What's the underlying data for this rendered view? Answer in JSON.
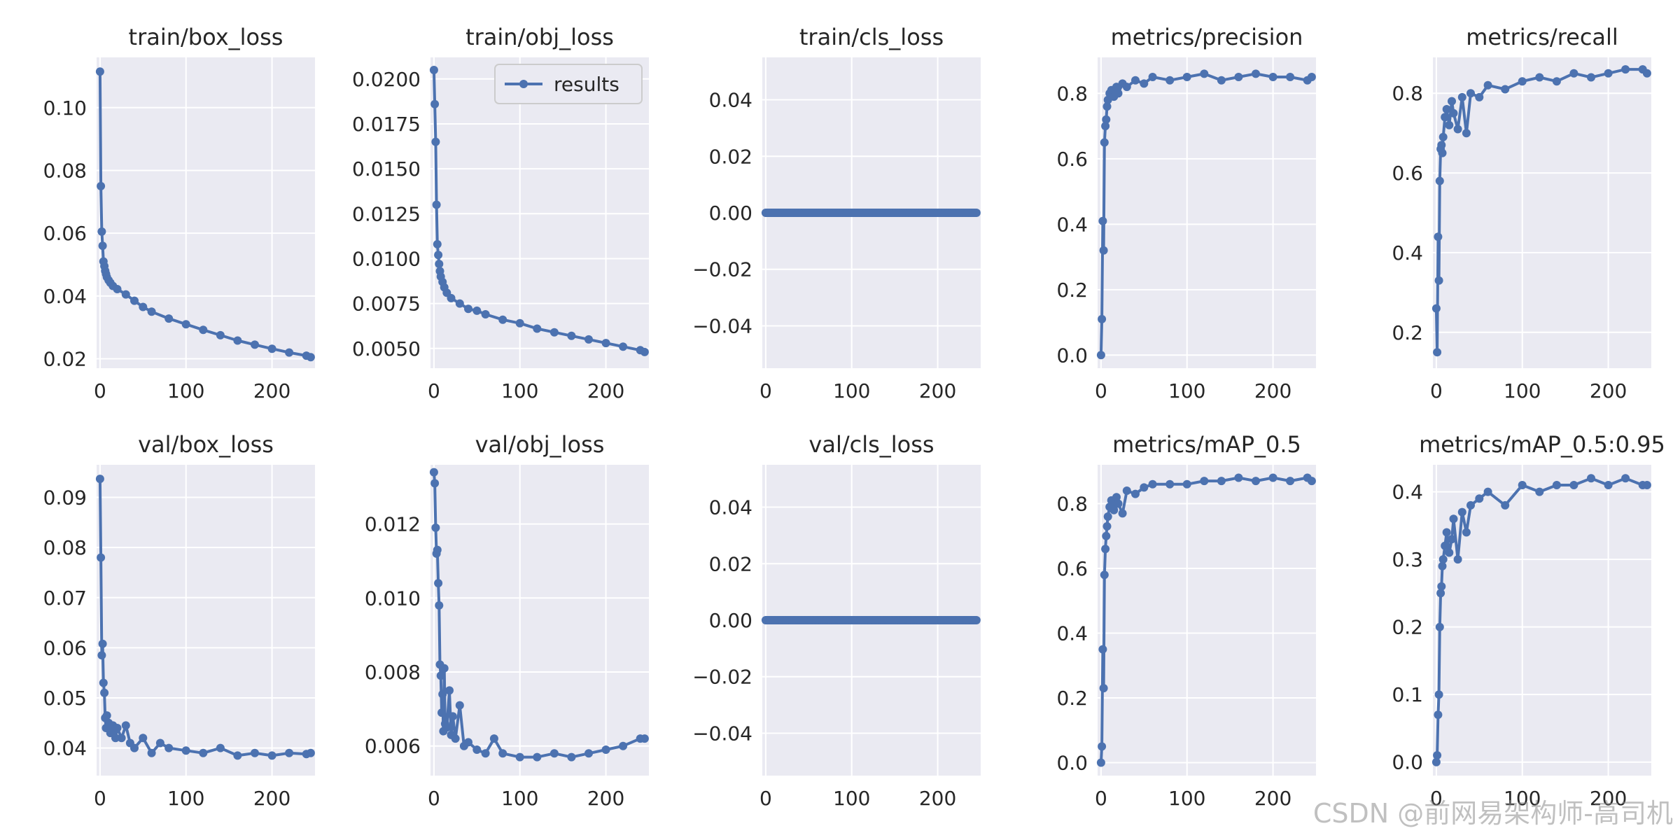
{
  "figure": {
    "series_color": "#4C72B0",
    "panel_bg": "#EAEAF2",
    "grid_color": "#FFFFFF",
    "tick_color": "#262626"
  },
  "watermark": "CSDN @前网易架构师-高司机",
  "chart_data": [
    {
      "type": "line",
      "title": "train/box_loss",
      "legend": [],
      "xlim": [
        -4,
        250
      ],
      "ylim": [
        0.017,
        0.116
      ],
      "xticks": [
        0,
        100,
        200
      ],
      "xtick_labels": [
        "0",
        "100",
        "200"
      ],
      "yticks": [
        0.02,
        0.04,
        0.06,
        0.08,
        0.1
      ],
      "ytick_labels": [
        "0.02",
        "0.04",
        "0.06",
        "0.08",
        "0.10"
      ],
      "series": [
        {
          "x": [
            0,
            1,
            2,
            3,
            4,
            5,
            6,
            7,
            8,
            10,
            12,
            15,
            20,
            30,
            40,
            50,
            60,
            80,
            100,
            120,
            140,
            160,
            180,
            200,
            220,
            240,
            245
          ],
          "y": [
            0.1115,
            0.075,
            0.0605,
            0.056,
            0.051,
            0.0495,
            0.048,
            0.047,
            0.046,
            0.045,
            0.0442,
            0.0432,
            0.0422,
            0.0405,
            0.0385,
            0.0365,
            0.035,
            0.0328,
            0.031,
            0.0292,
            0.0275,
            0.0258,
            0.0245,
            0.0232,
            0.022,
            0.021,
            0.0205
          ]
        }
      ]
    },
    {
      "type": "line",
      "title": "train/obj_loss",
      "legend": [
        "results"
      ],
      "legend_loc": "upper right",
      "xlim": [
        -4,
        250
      ],
      "ylim": [
        0.0039,
        0.0212
      ],
      "xticks": [
        0,
        100,
        200
      ],
      "xtick_labels": [
        "0",
        "100",
        "200"
      ],
      "yticks": [
        0.005,
        0.0075,
        0.01,
        0.0125,
        0.015,
        0.0175,
        0.02
      ],
      "ytick_labels": [
        "0.0050",
        "0.0075",
        "0.0100",
        "0.0125",
        "0.0150",
        "0.0175",
        "0.0200"
      ],
      "series": [
        {
          "name": "results",
          "x": [
            0,
            1,
            2,
            3,
            4,
            5,
            6,
            7,
            8,
            10,
            12,
            15,
            20,
            30,
            40,
            50,
            60,
            80,
            100,
            120,
            140,
            160,
            180,
            200,
            220,
            240,
            245
          ],
          "y": [
            0.0205,
            0.0186,
            0.0165,
            0.013,
            0.0108,
            0.0102,
            0.0097,
            0.0093,
            0.009,
            0.0087,
            0.0084,
            0.0081,
            0.0078,
            0.0075,
            0.0072,
            0.0071,
            0.0069,
            0.0066,
            0.0064,
            0.0061,
            0.0059,
            0.0057,
            0.0055,
            0.0053,
            0.0051,
            0.0049,
            0.0048
          ]
        }
      ]
    },
    {
      "type": "line",
      "title": "train/cls_loss",
      "legend": [],
      "xlim": [
        -4,
        250
      ],
      "ylim": [
        -0.055,
        0.055
      ],
      "xticks": [
        0,
        100,
        200
      ],
      "xtick_labels": [
        "0",
        "100",
        "200"
      ],
      "yticks": [
        -0.04,
        -0.02,
        0,
        0.02,
        0.04
      ],
      "ytick_labels": [
        "−0.04",
        "−0.02",
        "0.00",
        "0.02",
        "0.04"
      ],
      "series": [
        {
          "x": [
            0,
            245
          ],
          "y": [
            0,
            0
          ],
          "dense": true
        }
      ]
    },
    {
      "type": "line",
      "title": "metrics/precision",
      "legend": [],
      "xlim": [
        -4,
        250
      ],
      "ylim": [
        -0.04,
        0.91
      ],
      "xticks": [
        0,
        100,
        200
      ],
      "xtick_labels": [
        "0",
        "100",
        "200"
      ],
      "yticks": [
        0,
        0.2,
        0.4,
        0.6,
        0.8
      ],
      "ytick_labels": [
        "0.0",
        "0.2",
        "0.4",
        "0.6",
        "0.8"
      ],
      "series": [
        {
          "x": [
            0,
            1,
            2,
            3,
            4,
            5,
            6,
            7,
            8,
            10,
            12,
            15,
            18,
            20,
            25,
            30,
            40,
            50,
            60,
            80,
            100,
            120,
            140,
            160,
            180,
            200,
            220,
            240,
            245
          ],
          "y": [
            0.0,
            0.11,
            0.41,
            0.32,
            0.65,
            0.7,
            0.72,
            0.76,
            0.78,
            0.8,
            0.81,
            0.79,
            0.82,
            0.8,
            0.83,
            0.82,
            0.84,
            0.83,
            0.85,
            0.84,
            0.85,
            0.86,
            0.84,
            0.85,
            0.86,
            0.85,
            0.85,
            0.84,
            0.85
          ]
        }
      ]
    },
    {
      "type": "line",
      "title": "metrics/recall",
      "legend": [],
      "xlim": [
        -4,
        250
      ],
      "ylim": [
        0.11,
        0.89
      ],
      "xticks": [
        0,
        100,
        200
      ],
      "xtick_labels": [
        "0",
        "100",
        "200"
      ],
      "yticks": [
        0.2,
        0.4,
        0.6,
        0.8
      ],
      "ytick_labels": [
        "0.2",
        "0.4",
        "0.6",
        "0.8"
      ],
      "series": [
        {
          "x": [
            0,
            1,
            2,
            3,
            4,
            5,
            6,
            7,
            8,
            10,
            12,
            15,
            18,
            20,
            25,
            30,
            35,
            40,
            50,
            60,
            80,
            100,
            120,
            140,
            160,
            180,
            200,
            220,
            240,
            245
          ],
          "y": [
            0.26,
            0.15,
            0.44,
            0.33,
            0.58,
            0.66,
            0.67,
            0.65,
            0.69,
            0.74,
            0.76,
            0.72,
            0.78,
            0.75,
            0.71,
            0.79,
            0.7,
            0.8,
            0.79,
            0.82,
            0.81,
            0.83,
            0.84,
            0.83,
            0.85,
            0.84,
            0.85,
            0.86,
            0.86,
            0.85
          ]
        }
      ]
    },
    {
      "type": "line",
      "title": "val/box_loss",
      "legend": [],
      "xlim": [
        -4,
        250
      ],
      "ylim": [
        0.0345,
        0.0965
      ],
      "xticks": [
        0,
        100,
        200
      ],
      "xtick_labels": [
        "0",
        "100",
        "200"
      ],
      "yticks": [
        0.04,
        0.05,
        0.06,
        0.07,
        0.08,
        0.09
      ],
      "ytick_labels": [
        "0.04",
        "0.05",
        "0.06",
        "0.07",
        "0.08",
        "0.09"
      ],
      "series": [
        {
          "x": [
            0,
            1,
            2,
            3,
            4,
            5,
            6,
            7,
            8,
            10,
            12,
            15,
            18,
            20,
            25,
            30,
            35,
            40,
            50,
            60,
            70,
            80,
            100,
            120,
            140,
            160,
            180,
            200,
            220,
            240,
            245
          ],
          "y": [
            0.0937,
            0.078,
            0.0585,
            0.0608,
            0.053,
            0.051,
            0.046,
            0.044,
            0.0465,
            0.045,
            0.043,
            0.0445,
            0.042,
            0.044,
            0.042,
            0.0445,
            0.041,
            0.04,
            0.042,
            0.039,
            0.041,
            0.04,
            0.0395,
            0.039,
            0.04,
            0.0385,
            0.039,
            0.0385,
            0.039,
            0.0388,
            0.039
          ]
        }
      ]
    },
    {
      "type": "line",
      "title": "val/obj_loss",
      "legend": [],
      "xlim": [
        -4,
        250
      ],
      "ylim": [
        0.0052,
        0.0136
      ],
      "xticks": [
        0,
        100,
        200
      ],
      "xtick_labels": [
        "0",
        "100",
        "200"
      ],
      "yticks": [
        0.006,
        0.008,
        0.01,
        0.012
      ],
      "ytick_labels": [
        "0.006",
        "0.008",
        "0.010",
        "0.012"
      ],
      "series": [
        {
          "x": [
            0,
            1,
            2,
            3,
            4,
            5,
            6,
            7,
            8,
            9,
            10,
            11,
            12,
            13,
            15,
            18,
            20,
            22,
            25,
            30,
            35,
            40,
            50,
            60,
            70,
            80,
            100,
            120,
            140,
            160,
            180,
            200,
            220,
            240,
            245
          ],
          "y": [
            0.0134,
            0.0131,
            0.0119,
            0.0112,
            0.0113,
            0.0104,
            0.0098,
            0.0082,
            0.0079,
            0.0069,
            0.0074,
            0.0064,
            0.0081,
            0.0066,
            0.0065,
            0.0075,
            0.0063,
            0.0068,
            0.0062,
            0.0071,
            0.006,
            0.0061,
            0.0059,
            0.0058,
            0.0062,
            0.0058,
            0.0057,
            0.0057,
            0.0058,
            0.0057,
            0.0058,
            0.0059,
            0.006,
            0.0062,
            0.0062
          ]
        }
      ]
    },
    {
      "type": "line",
      "title": "val/cls_loss",
      "legend": [],
      "xlim": [
        -4,
        250
      ],
      "ylim": [
        -0.055,
        0.055
      ],
      "xticks": [
        0,
        100,
        200
      ],
      "xtick_labels": [
        "0",
        "100",
        "200"
      ],
      "yticks": [
        -0.04,
        -0.02,
        0,
        0.02,
        0.04
      ],
      "ytick_labels": [
        "−0.04",
        "−0.02",
        "0.00",
        "0.02",
        "0.04"
      ],
      "series": [
        {
          "x": [
            0,
            245
          ],
          "y": [
            0,
            0
          ],
          "dense": true
        }
      ]
    },
    {
      "type": "line",
      "title": "metrics/mAP_0.5",
      "legend": [],
      "xlim": [
        -4,
        250
      ],
      "ylim": [
        -0.04,
        0.92
      ],
      "xticks": [
        0,
        100,
        200
      ],
      "xtick_labels": [
        "0",
        "100",
        "200"
      ],
      "yticks": [
        0,
        0.2,
        0.4,
        0.6,
        0.8
      ],
      "ytick_labels": [
        "0.0",
        "0.2",
        "0.4",
        "0.6",
        "0.8"
      ],
      "series": [
        {
          "x": [
            0,
            1,
            2,
            3,
            4,
            5,
            6,
            7,
            8,
            10,
            12,
            15,
            18,
            20,
            25,
            30,
            40,
            50,
            60,
            80,
            100,
            120,
            140,
            160,
            180,
            200,
            220,
            240,
            245
          ],
          "y": [
            0.0,
            0.05,
            0.35,
            0.23,
            0.58,
            0.66,
            0.7,
            0.73,
            0.76,
            0.79,
            0.81,
            0.78,
            0.82,
            0.8,
            0.77,
            0.84,
            0.83,
            0.85,
            0.86,
            0.86,
            0.86,
            0.87,
            0.87,
            0.88,
            0.87,
            0.88,
            0.87,
            0.88,
            0.87
          ]
        }
      ]
    },
    {
      "type": "line",
      "title": "metrics/mAP_0.5:0.95",
      "legend": [],
      "xlim": [
        -4,
        250
      ],
      "ylim": [
        -0.02,
        0.44
      ],
      "xticks": [
        0,
        100,
        200
      ],
      "xtick_labels": [
        "0",
        "100",
        "200"
      ],
      "yticks": [
        0,
        0.1,
        0.2,
        0.3,
        0.4
      ],
      "ytick_labels": [
        "0.0",
        "0.1",
        "0.2",
        "0.3",
        "0.4"
      ],
      "series": [
        {
          "x": [
            0,
            1,
            2,
            3,
            4,
            5,
            6,
            7,
            8,
            10,
            12,
            15,
            18,
            20,
            25,
            30,
            35,
            40,
            50,
            60,
            80,
            100,
            120,
            140,
            160,
            180,
            200,
            220,
            240,
            245
          ],
          "y": [
            0.0,
            0.01,
            0.07,
            0.1,
            0.2,
            0.25,
            0.26,
            0.29,
            0.3,
            0.32,
            0.34,
            0.31,
            0.33,
            0.36,
            0.3,
            0.37,
            0.34,
            0.38,
            0.39,
            0.4,
            0.38,
            0.41,
            0.4,
            0.41,
            0.41,
            0.42,
            0.41,
            0.42,
            0.41,
            0.41
          ]
        }
      ]
    }
  ]
}
